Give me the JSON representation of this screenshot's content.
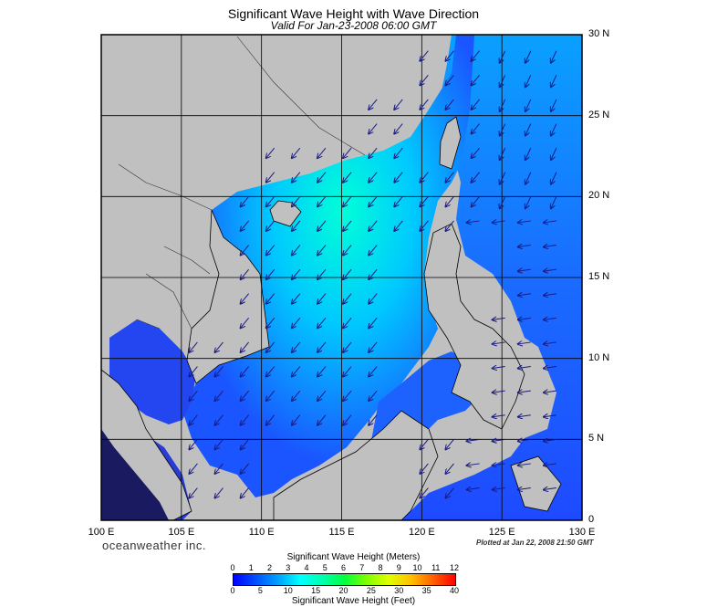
{
  "title": "Significant Wave Height with Wave Direction",
  "subtitle": "Valid For Jan-23-2008 06:00 GMT",
  "lat_labels": [
    "30 N",
    "25 N",
    "20 N",
    "15 N",
    "10 N",
    "5 N",
    "0"
  ],
  "lon_labels": [
    "100 E",
    "105 E",
    "110 E",
    "115 E",
    "120 E",
    "125 E",
    "130 E"
  ],
  "brand": "oceanweather inc.",
  "plotted": "Plotted at Jan 22, 2008 21:50 GMT",
  "legend": {
    "title_meters": "Significant Wave Height (Meters)",
    "title_feet": "Significant Wave Height (Feet)",
    "meter_ticks": [
      "0",
      "1",
      "2",
      "3",
      "4",
      "5",
      "6",
      "7",
      "8",
      "9",
      "10",
      "11",
      "12"
    ],
    "feet_ticks": [
      "0",
      "5",
      "10",
      "15",
      "20",
      "25",
      "30",
      "35",
      "40"
    ]
  },
  "map": {
    "region": "South China Sea",
    "lat_range": [
      0,
      30
    ],
    "lon_range": [
      100,
      130
    ],
    "grid_step_deg": 5,
    "wave_direction": "predominantly from the northeast (arrows pointing southwest); westward-pointing arrows east of the Philippines",
    "colors": {
      "land": "#c0c0c0",
      "low_wave": "#1e3cff",
      "mid_wave": "#00b4ff",
      "high_wave": "#00ffd0"
    }
  }
}
